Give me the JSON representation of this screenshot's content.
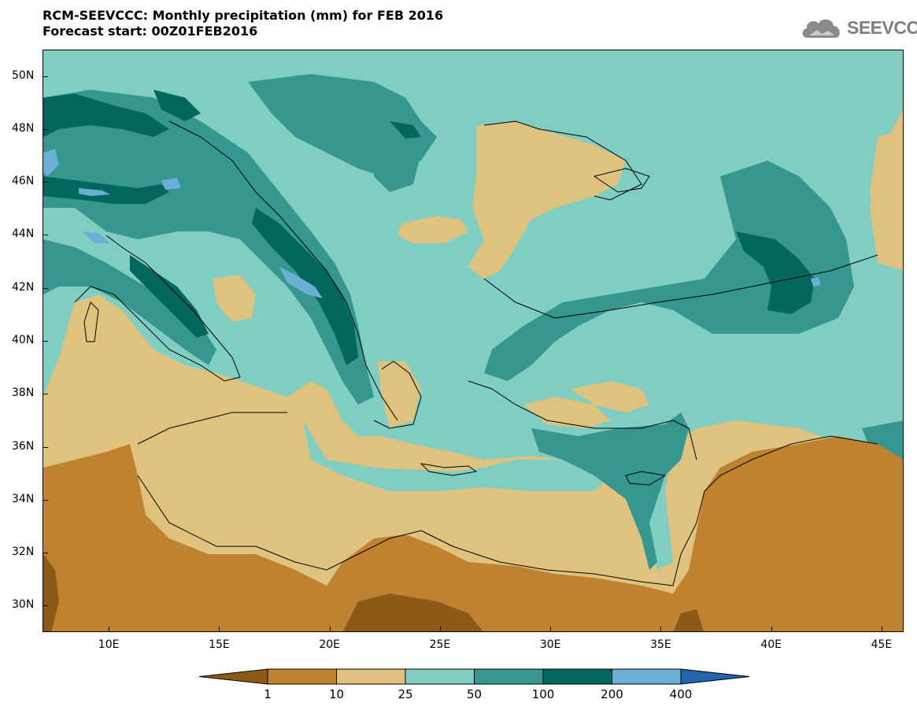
{
  "title": {
    "line1": "RCM-SEEVCCC: Monthly precipitation (mm) for FEB 2016",
    "line2": "Forecast start: 00Z01FEB2016"
  },
  "logo": {
    "text": "SEEVCCC",
    "icon": "cloud-logo-icon"
  },
  "map": {
    "lon_range": [
      7,
      46
    ],
    "lat_range": [
      29,
      51
    ],
    "lat_ticks": [
      {
        "value": 50,
        "label": "50N"
      },
      {
        "value": 48,
        "label": "48N"
      },
      {
        "value": 46,
        "label": "46N"
      },
      {
        "value": 44,
        "label": "44N"
      },
      {
        "value": 42,
        "label": "42N"
      },
      {
        "value": 40,
        "label": "40N"
      },
      {
        "value": 38,
        "label": "38N"
      },
      {
        "value": 36,
        "label": "36N"
      },
      {
        "value": 34,
        "label": "34N"
      },
      {
        "value": 32,
        "label": "32N"
      },
      {
        "value": 30,
        "label": "30N"
      }
    ],
    "lon_ticks": [
      {
        "value": 10,
        "label": "10E"
      },
      {
        "value": 15,
        "label": "15E"
      },
      {
        "value": 20,
        "label": "20E"
      },
      {
        "value": 25,
        "label": "25E"
      },
      {
        "value": 30,
        "label": "30E"
      },
      {
        "value": 35,
        "label": "35E"
      },
      {
        "value": 40,
        "label": "40E"
      },
      {
        "value": 45,
        "label": "45E"
      }
    ]
  },
  "colorbar": {
    "colors": [
      "#8b5a17",
      "#bf8230",
      "#dfc27e",
      "#80cdc1",
      "#35978f",
      "#01665e",
      "#6baed6",
      "#2166ac"
    ],
    "labels": [
      "1",
      "10",
      "25",
      "50",
      "100",
      "200",
      "400"
    ]
  }
}
